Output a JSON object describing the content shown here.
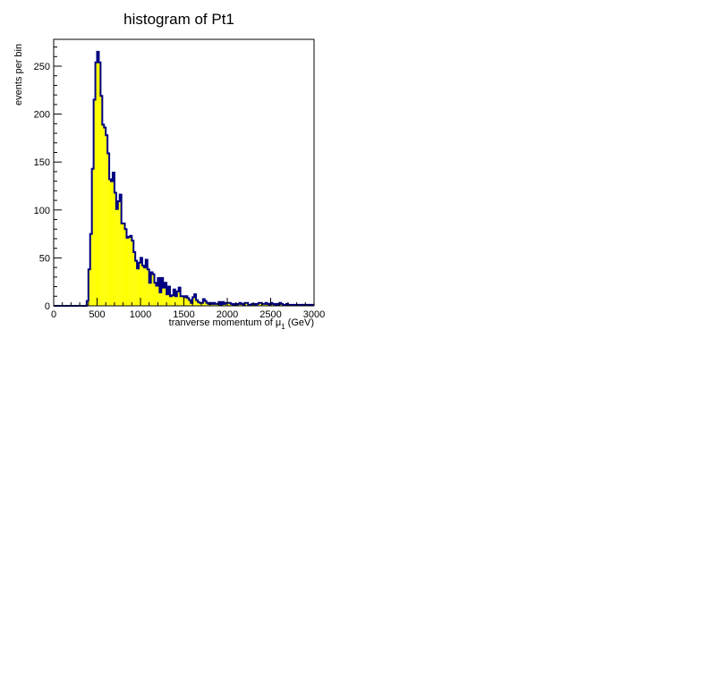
{
  "chart_data": {
    "type": "bar",
    "title": "histogram of Pt1",
    "xlabel": "tranverse momentum of μ",
    "xlabel_subscript": "1",
    "xlabel_unit": "(GeV)",
    "ylabel": "events per bin",
    "xlim": [
      0,
      3000
    ],
    "ylim": [
      0,
      278
    ],
    "x_ticks": [
      0,
      500,
      1000,
      1500,
      2000,
      2500,
      3000
    ],
    "x_tick_labels": [
      "0",
      "500",
      "1000",
      "1500",
      "2000",
      "2500",
      "3000"
    ],
    "y_ticks": [
      0,
      50,
      100,
      150,
      200,
      250
    ],
    "y_tick_labels": [
      "0",
      "50",
      "100",
      "150",
      "200",
      "250"
    ],
    "bin_width": 20,
    "bin_start": 0,
    "values": [
      0,
      0,
      0,
      0,
      0,
      0,
      0,
      0,
      0,
      0,
      0,
      0,
      0,
      0,
      0,
      0,
      0,
      0,
      0,
      5,
      38,
      75,
      143,
      215,
      254,
      265,
      254,
      219,
      189,
      186,
      178,
      159,
      132,
      130,
      139,
      118,
      101,
      109,
      116,
      86,
      86,
      80,
      71,
      72,
      73,
      68,
      56,
      47,
      39,
      45,
      50,
      42,
      40,
      48,
      38,
      24,
      35,
      33,
      24,
      21,
      29,
      14,
      29,
      19,
      24,
      12,
      20,
      10,
      11,
      17,
      10,
      15,
      19,
      10,
      10,
      9,
      10,
      8,
      6,
      3,
      9,
      12,
      6,
      4,
      3,
      3,
      7,
      5,
      3,
      2,
      3,
      2,
      3,
      2,
      2,
      4,
      1,
      4,
      2,
      3,
      3,
      3,
      2,
      1,
      2,
      1,
      2,
      3,
      2,
      1,
      3,
      3,
      1,
      1,
      2,
      2,
      1,
      2,
      3,
      3,
      2,
      2,
      3,
      2,
      1,
      3,
      2,
      1,
      2,
      1,
      3,
      2,
      1,
      1,
      2,
      1,
      1,
      1,
      1,
      1,
      1,
      1,
      1,
      1,
      1,
      1,
      1,
      1,
      1,
      1,
      1,
      1,
      1,
      1,
      1,
      1,
      1,
      1,
      1,
      1
    ],
    "fill_color": "#ffff00",
    "line_color": "#000080",
    "grid": false,
    "legend": "none"
  }
}
